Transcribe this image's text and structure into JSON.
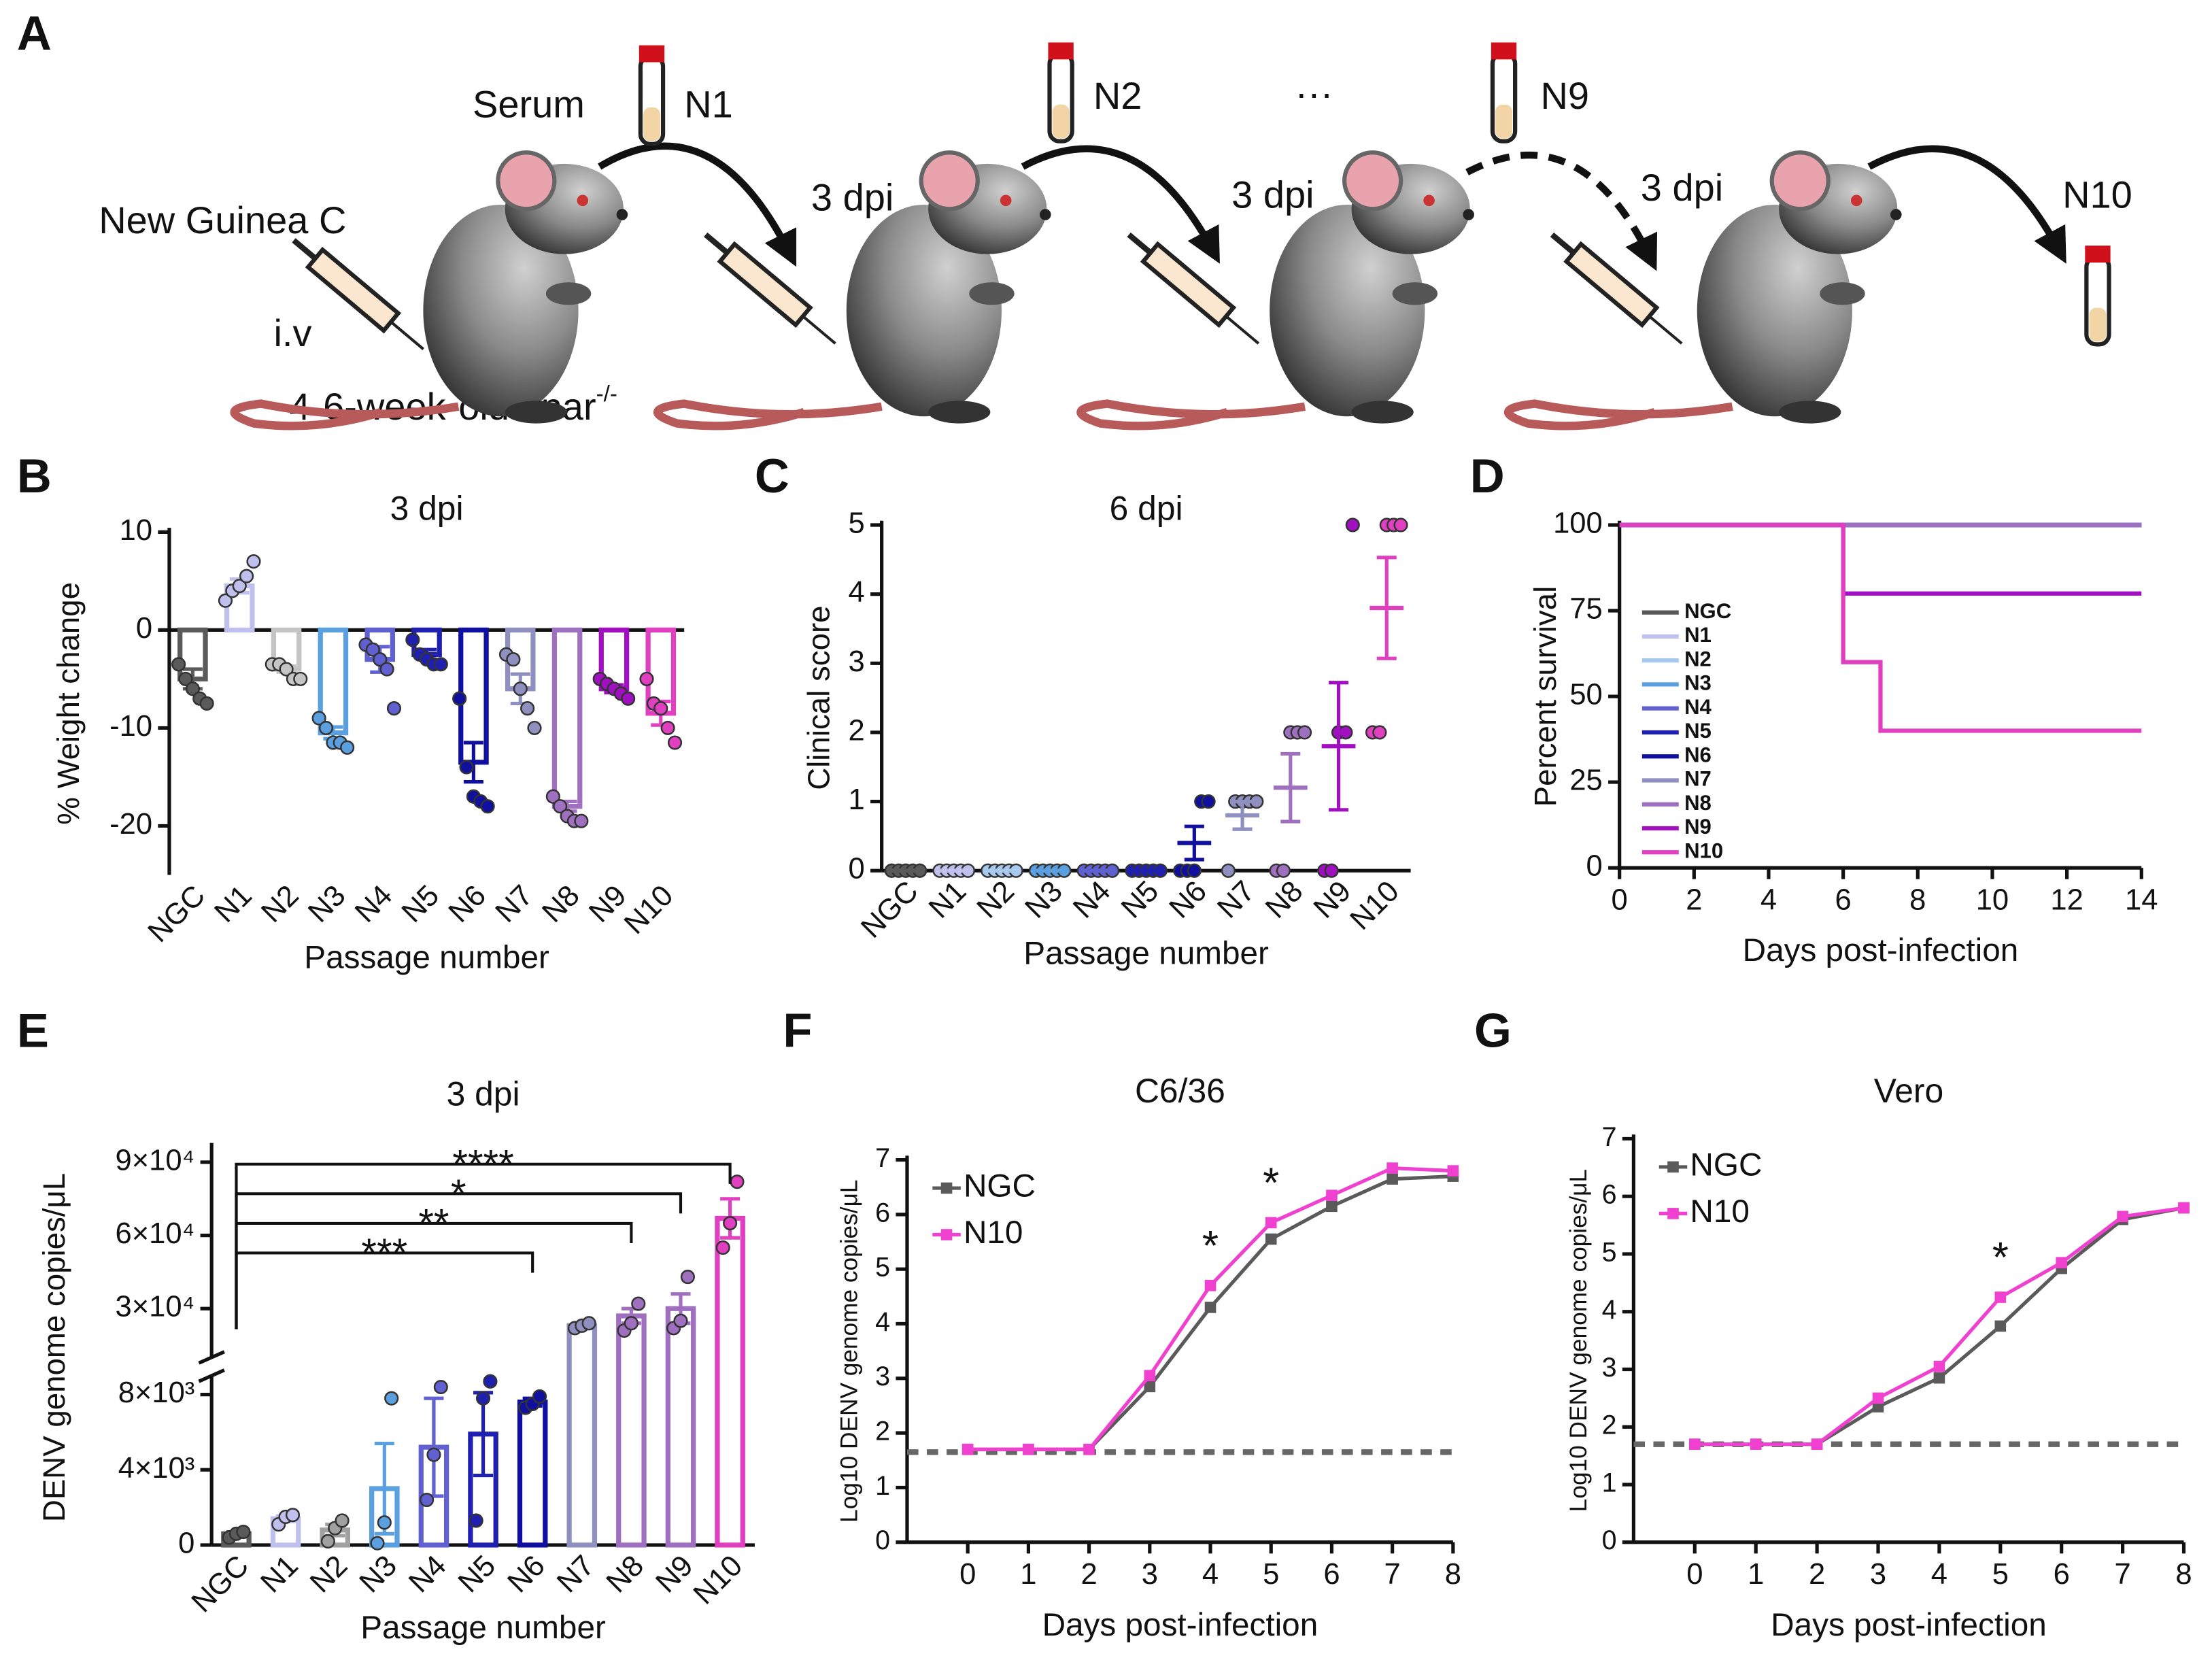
{
  "diagram": {
    "label": "A",
    "serum": "Serum",
    "samples": [
      "N1",
      "N2",
      "···",
      "N9"
    ],
    "final": "N10",
    "strain": "New Guinea C",
    "route": "i.v",
    "intervals": [
      "3 dpi",
      "3 dpi",
      "3 dpi"
    ],
    "mouse": "4-6-week-old Ifnar",
    "mouse_sup": "-/-"
  },
  "chart_data": [
    {
      "panel": "B",
      "type": "bar",
      "title": "3 dpi",
      "xlabel": "Passage number",
      "ylabel": "% Weight change",
      "categories": [
        "NGC",
        "N1",
        "N2",
        "N3",
        "N4",
        "N5",
        "N6",
        "N7",
        "N8",
        "N9",
        "N10"
      ],
      "colors": [
        "#5a5a5a",
        "#c0c0ee",
        "#c4c4c4",
        "#5aa0e0",
        "#6060d0",
        "#2020b0",
        "#1010a0",
        "#9090c0",
        "#a070c0",
        "#a010c0",
        "#e040c0"
      ],
      "values": [
        -5,
        4.5,
        -4,
        -10.5,
        -3,
        -2.5,
        -13.5,
        -6,
        -18,
        -6,
        -8.5
      ],
      "errors": [
        1,
        0.7,
        0.3,
        0.6,
        1.3,
        0.5,
        2,
        1.5,
        0.5,
        0.4,
        1.2
      ],
      "points": [
        [
          -3.5,
          -5,
          -6,
          -7,
          -7.5
        ],
        [
          3,
          4,
          4.5,
          5.5,
          7
        ],
        [
          -3.5,
          -3.5,
          -4,
          -5,
          -5
        ],
        [
          -9,
          -10,
          -11.5,
          -11.5,
          -12
        ],
        [
          -1.5,
          -2,
          -3,
          -4,
          -8
        ],
        [
          -1,
          -2.5,
          -3,
          -3.5,
          -3.5
        ],
        [
          -7,
          -14,
          -17,
          -17.5,
          -18
        ],
        [
          -2.5,
          -3,
          -6,
          -8,
          -10
        ],
        [
          -17,
          -18,
          -19,
          -19.5,
          -19.5
        ],
        [
          -5,
          -5.5,
          -6,
          -6.5,
          -7
        ],
        [
          -5,
          -7.5,
          -8,
          -10,
          -11.5
        ]
      ],
      "ylim": [
        -25,
        10
      ],
      "yticks": [
        10,
        0,
        -10,
        -20
      ]
    },
    {
      "panel": "C",
      "type": "strip",
      "title": "6 dpi",
      "xlabel": "Passage number",
      "ylabel": "Clinical score",
      "categories": [
        "NGC",
        "N1",
        "N2",
        "N3",
        "N4",
        "N5",
        "N6",
        "N7",
        "N8",
        "N9",
        "N10"
      ],
      "colors": [
        "#5a5a5a",
        "#c0c0ee",
        "#a8c8ee",
        "#5aa0e0",
        "#6060d0",
        "#2020b0",
        "#1010a0",
        "#9090c0",
        "#a070c0",
        "#a010c0",
        "#e040c0"
      ],
      "values": [
        0,
        0,
        0,
        0,
        0,
        0,
        0.4,
        0.8,
        1.2,
        1.8,
        3.8
      ],
      "errors": [
        0,
        0,
        0,
        0,
        0,
        0,
        0.24,
        0.2,
        0.49,
        0.92,
        0.73
      ],
      "points": [
        [
          0,
          0,
          0,
          0,
          0
        ],
        [
          0,
          0,
          0,
          0,
          0
        ],
        [
          0,
          0,
          0,
          0,
          0
        ],
        [
          0,
          0,
          0,
          0,
          0
        ],
        [
          0,
          0,
          0,
          0,
          0
        ],
        [
          0,
          0,
          0,
          0,
          0
        ],
        [
          0,
          0,
          0,
          1,
          1
        ],
        [
          0,
          1,
          1,
          1,
          1
        ],
        [
          0,
          0,
          2,
          2,
          2
        ],
        [
          0,
          0,
          2,
          2,
          5
        ],
        [
          2,
          2,
          5,
          5,
          5
        ]
      ],
      "ylim": [
        0,
        5
      ],
      "yticks": [
        0,
        1,
        2,
        3,
        4,
        5
      ]
    },
    {
      "panel": "D",
      "type": "line",
      "step": true,
      "xlabel": "Days post-infection",
      "ylabel": "Percent survival",
      "xlim": [
        0,
        14
      ],
      "xticks": [
        0,
        2,
        4,
        6,
        8,
        10,
        12,
        14
      ],
      "ylim": [
        0,
        100
      ],
      "yticks": [
        0,
        25,
        50,
        75,
        100
      ],
      "series": [
        {
          "name": "NGC",
          "color": "#5a5a5a",
          "x": [
            0,
            14
          ],
          "values": [
            100,
            100
          ]
        },
        {
          "name": "N1",
          "color": "#c0c0ee",
          "x": [
            0,
            14
          ],
          "values": [
            100,
            100
          ]
        },
        {
          "name": "N2",
          "color": "#a8c8ee",
          "x": [
            0,
            14
          ],
          "values": [
            100,
            100
          ]
        },
        {
          "name": "N3",
          "color": "#5aa0e0",
          "x": [
            0,
            14
          ],
          "values": [
            100,
            100
          ]
        },
        {
          "name": "N4",
          "color": "#6060d0",
          "x": [
            0,
            14
          ],
          "values": [
            100,
            100
          ]
        },
        {
          "name": "N5",
          "color": "#2020b0",
          "x": [
            0,
            14
          ],
          "values": [
            100,
            100
          ]
        },
        {
          "name": "N6",
          "color": "#1010a0",
          "x": [
            0,
            14
          ],
          "values": [
            100,
            100
          ]
        },
        {
          "name": "N7",
          "color": "#9090c0",
          "x": [
            0,
            14
          ],
          "values": [
            100,
            100
          ]
        },
        {
          "name": "N8",
          "color": "#a070c0",
          "x": [
            0,
            14
          ],
          "values": [
            100,
            100
          ]
        },
        {
          "name": "N9",
          "color": "#a010c0",
          "x": [
            0,
            6,
            14
          ],
          "values": [
            100,
            80,
            80
          ]
        },
        {
          "name": "N10",
          "color": "#e040c0",
          "x": [
            0,
            6,
            7,
            14
          ],
          "values": [
            100,
            60,
            40,
            40
          ]
        }
      ]
    },
    {
      "panel": "E",
      "type": "bar",
      "title": "3 dpi",
      "xlabel": "Passage number",
      "ylabel": "DENV genome copies/μL",
      "categories": [
        "NGC",
        "N1",
        "N2",
        "N3",
        "N4",
        "N5",
        "N6",
        "N7",
        "N8",
        "N9",
        "N10"
      ],
      "colors": [
        "#5a5a5a",
        "#c0c0ee",
        "#a0a0a0",
        "#5aa0e0",
        "#6060d0",
        "#2020b0",
        "#1010a0",
        "#9090c0",
        "#a070c0",
        "#a070c0",
        "#e040c0"
      ],
      "values": [
        600,
        1400,
        800,
        3000,
        5200,
        5900,
        7600,
        23000,
        27000,
        30000,
        67000
      ],
      "errors": [
        100,
        150,
        300,
        2400,
        2600,
        2200,
        200,
        600,
        3000,
        6000,
        8000
      ],
      "points": [
        [
          400,
          600,
          700
        ],
        [
          1100,
          1500,
          1600
        ],
        [
          200,
          900,
          1300
        ],
        [
          100,
          1200,
          7800
        ],
        [
          2400,
          4800,
          8400
        ],
        [
          1300,
          7800,
          8700
        ],
        [
          7300,
          7500,
          7900
        ],
        [
          22000,
          23000,
          24000
        ],
        [
          21000,
          24000,
          32000
        ],
        [
          22000,
          25000,
          43000
        ],
        [
          55000,
          65000,
          82000
        ]
      ],
      "ylim": [
        0,
        95000
      ],
      "axis_break": [
        9000,
        10000
      ],
      "yticks": [
        0,
        {
          "value": 4000,
          "label": "4×10³"
        },
        {
          "value": 8000,
          "label": "8×10³"
        },
        {
          "value": 30000,
          "label": "3×10⁴"
        },
        {
          "value": 60000,
          "label": "6×10⁴"
        },
        {
          "value": 90000,
          "label": "9×10⁴"
        }
      ],
      "comparisons": [
        {
          "label": "****",
          "category": "N10"
        },
        {
          "label": "*",
          "category": "N9"
        },
        {
          "label": "**",
          "category": "N8"
        },
        {
          "label": "***",
          "category": "N6"
        }
      ]
    },
    {
      "panel": "F",
      "type": "line",
      "title": "C6/36",
      "xlabel": "Days post-infection",
      "ylabel": "Log10 DENV genome copies/μL",
      "x": [
        0,
        1,
        2,
        3,
        4,
        5,
        6,
        7,
        8
      ],
      "xlim": [
        -1,
        8
      ],
      "xticks": [
        0,
        1,
        2,
        3,
        4,
        5,
        6,
        7,
        8
      ],
      "ylim": [
        0,
        7
      ],
      "yticks": [
        0,
        1,
        2,
        3,
        4,
        5,
        6,
        7
      ],
      "threshold": 1.65,
      "series": [
        {
          "name": "NGC",
          "color": "#5a5a5a",
          "values": [
            1.7,
            1.7,
            1.7,
            2.85,
            4.3,
            5.55,
            6.15,
            6.65,
            6.7
          ]
        },
        {
          "name": "N10",
          "color": "#f040d0",
          "values": [
            1.7,
            1.7,
            1.7,
            3.05,
            4.7,
            5.85,
            6.35,
            6.85,
            6.8
          ]
        }
      ],
      "annotations": [
        {
          "x": 4,
          "label": "*"
        },
        {
          "x": 5,
          "label": "*"
        }
      ]
    },
    {
      "panel": "G",
      "type": "line",
      "title": "Vero",
      "xlabel": "Days post-infection",
      "ylabel": "Log10 DENV genome copies/μL",
      "x": [
        0,
        1,
        2,
        3,
        4,
        5,
        6,
        7,
        8
      ],
      "xlim": [
        -1,
        8
      ],
      "xticks": [
        0,
        1,
        2,
        3,
        4,
        5,
        6,
        7,
        8
      ],
      "ylim": [
        0,
        7
      ],
      "yticks": [
        0,
        1,
        2,
        3,
        4,
        5,
        6,
        7
      ],
      "threshold": 1.7,
      "series": [
        {
          "name": "NGC",
          "color": "#5a5a5a",
          "values": [
            1.7,
            1.7,
            1.7,
            2.35,
            2.85,
            3.75,
            4.75,
            5.6,
            5.8
          ]
        },
        {
          "name": "N10",
          "color": "#f040d0",
          "values": [
            1.7,
            1.7,
            1.7,
            2.5,
            3.05,
            4.25,
            4.85,
            5.65,
            5.8
          ]
        }
      ],
      "annotations": [
        {
          "x": 5,
          "label": "*"
        }
      ]
    }
  ]
}
